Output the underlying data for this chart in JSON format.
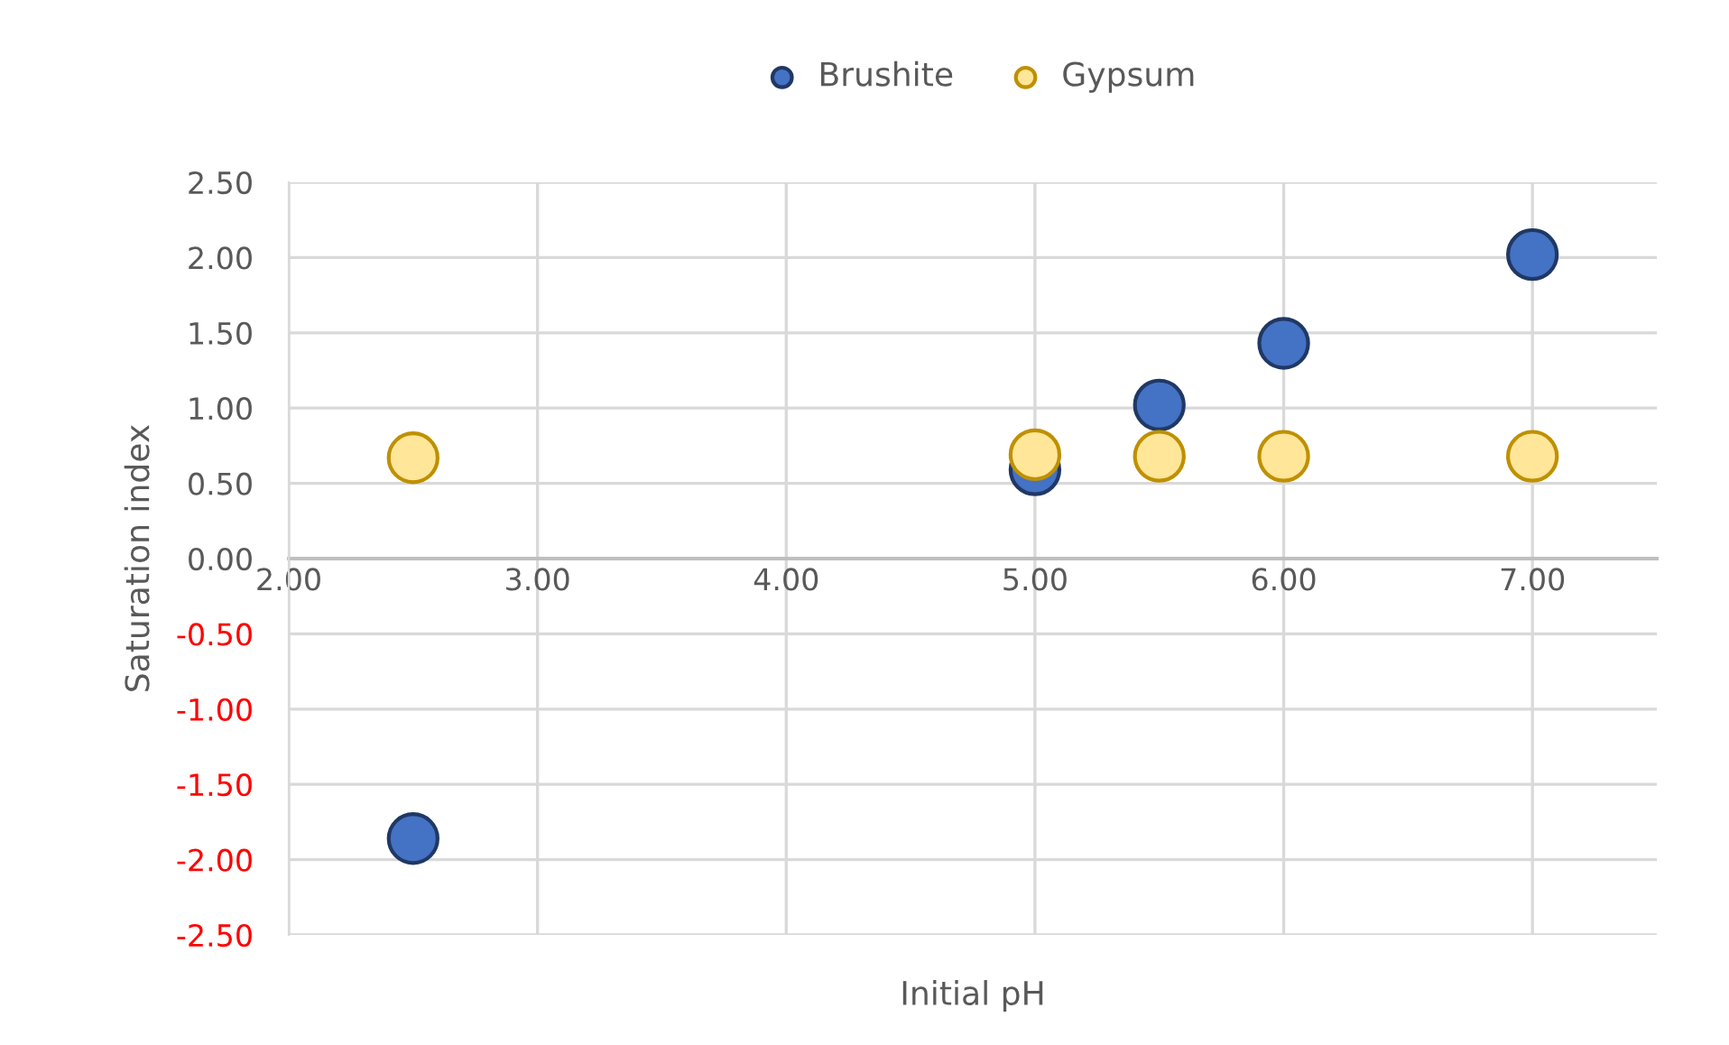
{
  "chart_data": {
    "type": "scatter",
    "xlabel": "Initial pH",
    "ylabel": "Saturation index",
    "series": [
      {
        "name": "Brushite",
        "color": "#4472c4",
        "x": [
          2.5,
          5.0,
          5.5,
          6.0,
          7.0
        ],
        "values": [
          -1.86,
          0.59,
          1.02,
          1.43,
          2.02
        ]
      },
      {
        "name": "Gypsum",
        "color": "#ffe699",
        "x": [
          2.5,
          5.0,
          5.5,
          6.0,
          7.0
        ],
        "values": [
          0.67,
          0.69,
          0.68,
          0.68,
          0.68
        ]
      }
    ],
    "xlim": [
      2.0,
      7.5
    ],
    "xticks": [
      {
        "value": 2,
        "label": "2.00"
      },
      {
        "value": 3,
        "label": "3.00"
      },
      {
        "value": 4,
        "label": "4.00"
      },
      {
        "value": 5,
        "label": "5.00"
      },
      {
        "value": 6,
        "label": "6.00"
      },
      {
        "value": 7,
        "label": "7.00"
      }
    ],
    "ylim": [
      -2.5,
      2.5
    ],
    "yticks": [
      {
        "value": 2.5,
        "label": "2.50"
      },
      {
        "value": 2,
        "label": "2.00"
      },
      {
        "value": 1.5,
        "label": "1.50"
      },
      {
        "value": 1,
        "label": "1.00"
      },
      {
        "value": 0.5,
        "label": "0.50"
      },
      {
        "value": 0,
        "label": "0.00"
      },
      {
        "value": -0.5,
        "label": "-0.50"
      },
      {
        "value": -1,
        "label": "-1.00"
      },
      {
        "value": -1.5,
        "label": "-1.50"
      },
      {
        "value": -2,
        "label": "-2.00"
      },
      {
        "value": -2.5,
        "label": "-2.50"
      }
    ],
    "grid": true,
    "legend": "top",
    "marker": "circle"
  }
}
